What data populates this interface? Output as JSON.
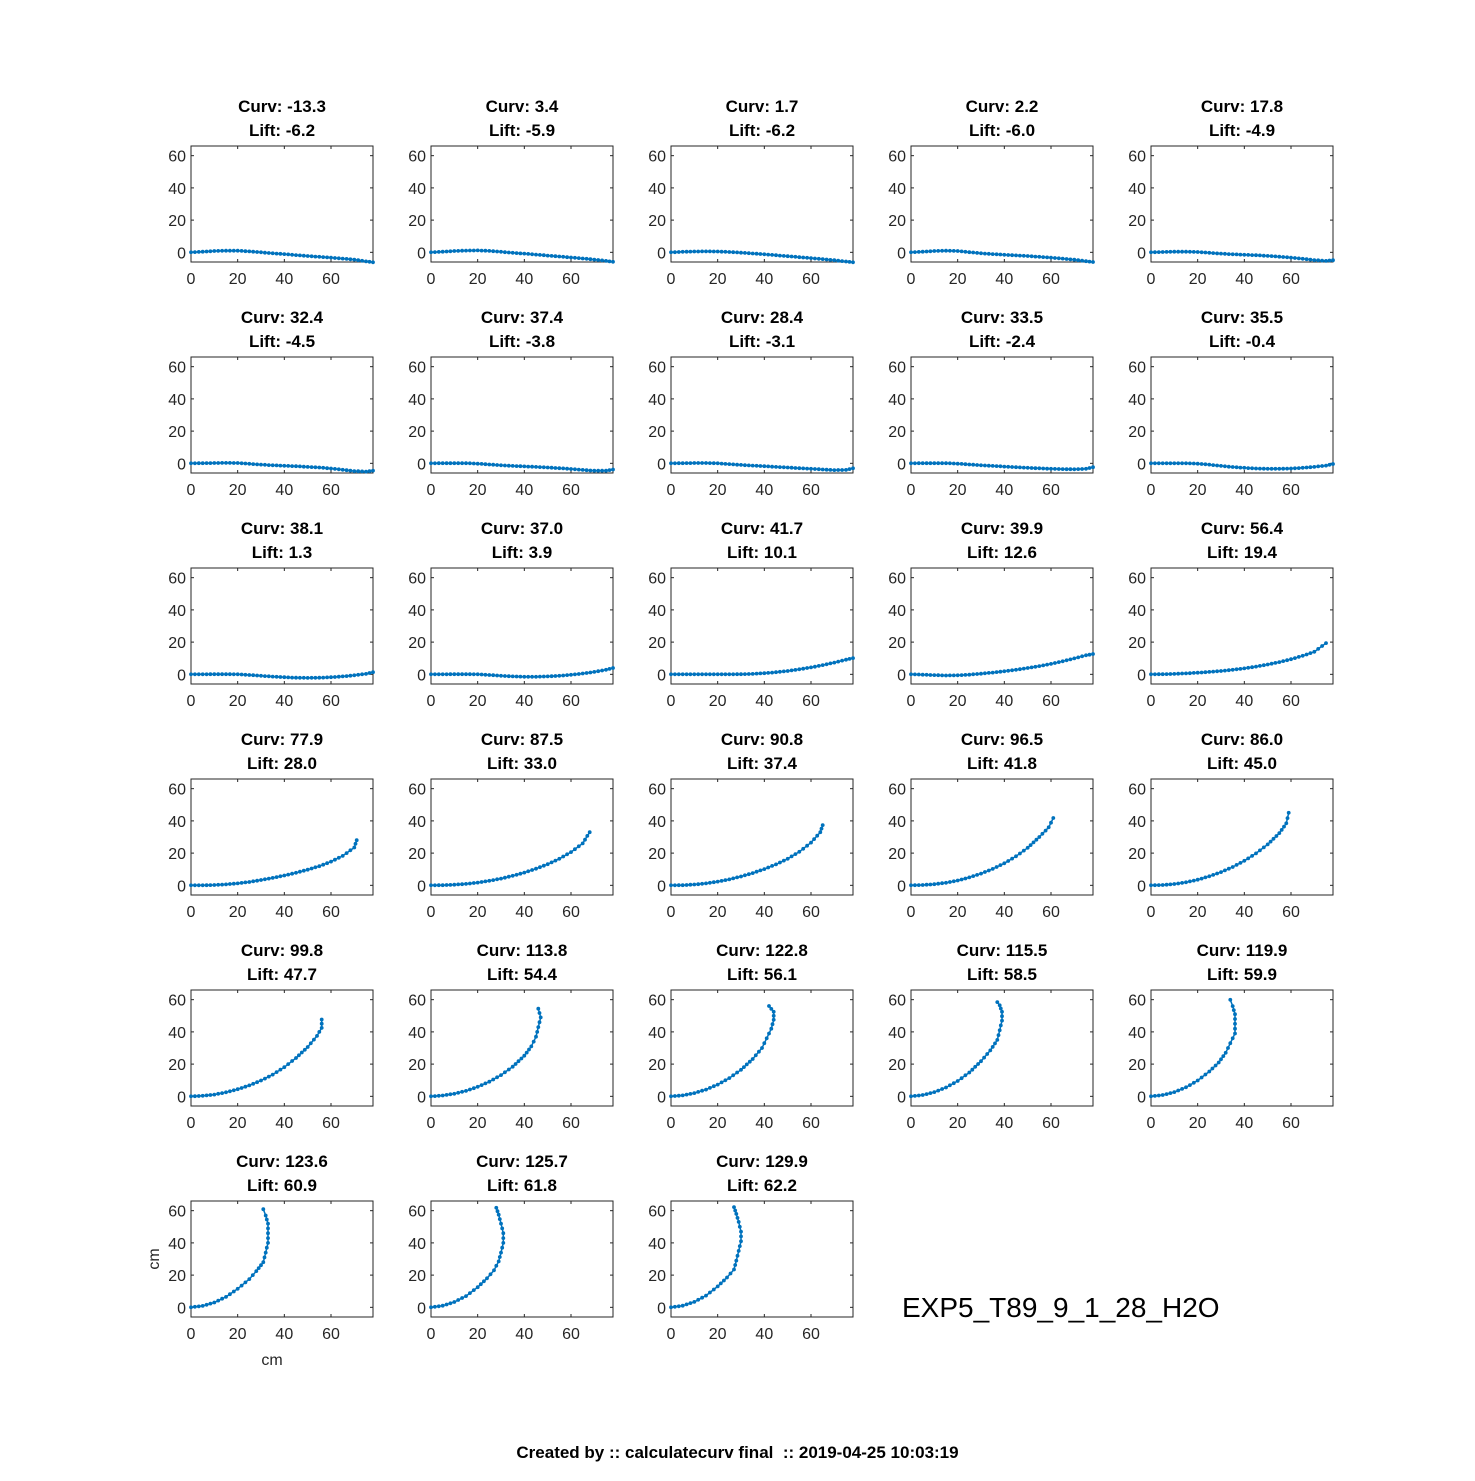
{
  "chart_data": {
    "type": "scatter",
    "layout": "small-multiples grid, 5 columns x 6 rows",
    "xlabel": "cm",
    "ylabel": "cm",
    "xlim": [
      0,
      78
    ],
    "ylim": [
      -6,
      66
    ],
    "xticks": [
      0,
      20,
      40,
      60
    ],
    "yticks": [
      0,
      20,
      40,
      60
    ],
    "series_color": "#0072BD",
    "panels": [
      {
        "curv": "-13.3",
        "lift": "-6.2",
        "x": [
          0,
          5,
          10,
          15,
          20,
          25,
          30,
          35,
          40,
          45,
          50,
          55,
          60,
          65,
          70,
          75,
          78
        ],
        "y": [
          0,
          0.4,
          0.8,
          1.0,
          1.0,
          0.6,
          0,
          -0.6,
          -1.1,
          -1.7,
          -2.3,
          -2.8,
          -3.3,
          -3.9,
          -4.5,
          -5.6,
          -6.2
        ]
      },
      {
        "curv": "3.4",
        "lift": "-5.9",
        "x": [
          0,
          5,
          10,
          15,
          20,
          25,
          30,
          35,
          40,
          45,
          50,
          55,
          60,
          65,
          70,
          75,
          78
        ],
        "y": [
          0,
          0.4,
          0.8,
          1.1,
          1.2,
          0.9,
          0.3,
          -0.3,
          -0.8,
          -1.4,
          -2.0,
          -2.6,
          -3.2,
          -3.8,
          -4.5,
          -5.3,
          -5.9
        ]
      },
      {
        "curv": "1.7",
        "lift": "-6.2",
        "x": [
          0,
          5,
          10,
          15,
          20,
          25,
          30,
          35,
          40,
          45,
          50,
          55,
          60,
          65,
          70,
          75,
          78
        ],
        "y": [
          0,
          0.3,
          0.5,
          0.6,
          0.5,
          0.2,
          -0.2,
          -0.7,
          -1.2,
          -1.8,
          -2.4,
          -3.0,
          -3.6,
          -4.2,
          -4.9,
          -5.7,
          -6.2
        ]
      },
      {
        "curv": "2.2",
        "lift": "-6.0",
        "x": [
          0,
          5,
          10,
          15,
          20,
          25,
          30,
          35,
          40,
          45,
          50,
          55,
          60,
          65,
          70,
          75,
          78
        ],
        "y": [
          0,
          0.4,
          0.8,
          1.0,
          0.8,
          0.1,
          -0.6,
          -1.1,
          -1.5,
          -1.9,
          -2.3,
          -2.8,
          -3.3,
          -3.9,
          -4.6,
          -5.5,
          -6.0
        ]
      },
      {
        "curv": "17.8",
        "lift": "-4.9",
        "x": [
          0,
          5,
          10,
          15,
          20,
          25,
          30,
          35,
          40,
          45,
          50,
          55,
          60,
          65,
          70,
          75,
          78
        ],
        "y": [
          0,
          0.2,
          0.4,
          0.4,
          0.2,
          -0.3,
          -0.8,
          -1.2,
          -1.5,
          -1.8,
          -2.2,
          -2.7,
          -3.3,
          -4.0,
          -4.8,
          -5.3,
          -4.9
        ]
      },
      {
        "curv": "32.4",
        "lift": "-4.5",
        "x": [
          0,
          5,
          10,
          15,
          20,
          25,
          30,
          35,
          40,
          45,
          50,
          55,
          60,
          65,
          70,
          75,
          78
        ],
        "y": [
          0,
          0.1,
          0.2,
          0.3,
          0.2,
          -0.3,
          -0.8,
          -1.2,
          -1.5,
          -1.8,
          -2.2,
          -2.6,
          -3.2,
          -4.0,
          -4.8,
          -5.1,
          -4.5
        ]
      },
      {
        "curv": "37.4",
        "lift": "-3.8",
        "x": [
          0,
          5,
          10,
          15,
          20,
          25,
          30,
          35,
          40,
          45,
          50,
          55,
          60,
          65,
          70,
          75,
          78
        ],
        "y": [
          0,
          0.1,
          0.1,
          0.1,
          -0.2,
          -0.7,
          -1.2,
          -1.6,
          -1.9,
          -2.2,
          -2.6,
          -3.0,
          -3.5,
          -4.1,
          -4.6,
          -4.6,
          -3.8
        ]
      },
      {
        "curv": "28.4",
        "lift": "-3.1",
        "x": [
          0,
          5,
          10,
          15,
          20,
          25,
          30,
          35,
          40,
          45,
          50,
          55,
          60,
          65,
          70,
          75,
          78
        ],
        "y": [
          0,
          0.1,
          0.2,
          0.2,
          0,
          -0.5,
          -1.0,
          -1.4,
          -1.8,
          -2.2,
          -2.6,
          -3.0,
          -3.4,
          -3.8,
          -4.2,
          -4.1,
          -3.1
        ]
      },
      {
        "curv": "33.5",
        "lift": "-2.4",
        "x": [
          0,
          5,
          10,
          15,
          20,
          25,
          30,
          35,
          40,
          45,
          50,
          55,
          60,
          65,
          70,
          75,
          78
        ],
        "y": [
          0,
          0.1,
          0.1,
          0.1,
          -0.2,
          -0.7,
          -1.2,
          -1.6,
          -2.0,
          -2.4,
          -2.8,
          -3.1,
          -3.4,
          -3.6,
          -3.7,
          -3.4,
          -2.4
        ]
      },
      {
        "curv": "35.5",
        "lift": "-0.4",
        "x": [
          0,
          5,
          10,
          15,
          20,
          25,
          30,
          35,
          40,
          45,
          50,
          55,
          60,
          65,
          70,
          75,
          78
        ],
        "y": [
          0,
          0,
          0,
          0,
          -0.2,
          -0.8,
          -1.6,
          -2.3,
          -2.8,
          -3.2,
          -3.4,
          -3.4,
          -3.2,
          -2.8,
          -2.2,
          -1.4,
          -0.4
        ]
      },
      {
        "curv": "38.1",
        "lift": "1.3",
        "x": [
          0,
          5,
          10,
          15,
          20,
          25,
          30,
          35,
          40,
          45,
          50,
          55,
          60,
          65,
          70,
          75,
          78
        ],
        "y": [
          0,
          0,
          0.1,
          0.1,
          0,
          -0.4,
          -0.9,
          -1.4,
          -1.8,
          -2.1,
          -2.2,
          -2.1,
          -1.8,
          -1.3,
          -0.6,
          0.3,
          1.3
        ]
      },
      {
        "curv": "37.0",
        "lift": "3.9",
        "x": [
          0,
          5,
          10,
          15,
          20,
          25,
          30,
          35,
          40,
          45,
          50,
          55,
          60,
          65,
          70,
          75,
          78
        ],
        "y": [
          0,
          0,
          0.1,
          0.1,
          0,
          -0.4,
          -0.9,
          -1.3,
          -1.5,
          -1.5,
          -1.3,
          -0.9,
          -0.3,
          0.5,
          1.5,
          2.8,
          3.9
        ]
      },
      {
        "curv": "41.7",
        "lift": "10.1",
        "x": [
          0,
          5,
          10,
          15,
          20,
          25,
          30,
          35,
          40,
          45,
          50,
          55,
          60,
          65,
          70,
          75,
          78
        ],
        "y": [
          0,
          0,
          0,
          0,
          0,
          0,
          0.1,
          0.3,
          0.7,
          1.3,
          2.1,
          3.1,
          4.3,
          5.7,
          7.3,
          9.1,
          10.1
        ]
      },
      {
        "curv": "39.9",
        "lift": "12.6",
        "x": [
          0,
          5,
          10,
          15,
          20,
          25,
          30,
          35,
          40,
          45,
          50,
          55,
          60,
          65,
          70,
          75,
          78
        ],
        "y": [
          0,
          -0.2,
          -0.5,
          -0.7,
          -0.6,
          -0.2,
          0.4,
          1.1,
          1.9,
          2.8,
          3.9,
          5.1,
          6.5,
          8.1,
          9.9,
          11.8,
          12.6
        ]
      },
      {
        "curv": "56.4",
        "lift": "19.4",
        "x": [
          0,
          5,
          10,
          15,
          20,
          25,
          30,
          35,
          40,
          45,
          50,
          55,
          60,
          65,
          70,
          75
        ],
        "y": [
          0,
          0.1,
          0.3,
          0.6,
          1.0,
          1.5,
          2.1,
          2.8,
          3.7,
          4.8,
          6.1,
          7.6,
          9.4,
          11.5,
          14.0,
          19.4
        ]
      },
      {
        "curv": "77.9",
        "lift": "28.0",
        "x": [
          0,
          5,
          10,
          15,
          20,
          25,
          30,
          35,
          40,
          45,
          50,
          55,
          60,
          65,
          70,
          71
        ],
        "y": [
          0,
          0,
          0.2,
          0.6,
          1.2,
          2.1,
          3.3,
          4.6,
          6.1,
          7.8,
          9.7,
          11.9,
          14.7,
          18.3,
          23.5,
          28.0
        ]
      },
      {
        "curv": "87.5",
        "lift": "33.0",
        "x": [
          0,
          5,
          10,
          15,
          20,
          25,
          30,
          35,
          40,
          45,
          50,
          55,
          60,
          65,
          68
        ],
        "y": [
          0,
          0.1,
          0.4,
          0.9,
          1.7,
          2.8,
          4.2,
          5.9,
          7.9,
          10.3,
          13.1,
          16.5,
          20.6,
          26.0,
          33.0
        ]
      },
      {
        "curv": "90.8",
        "lift": "37.4",
        "x": [
          0,
          5,
          10,
          15,
          20,
          25,
          30,
          35,
          40,
          45,
          50,
          55,
          60,
          64,
          65
        ],
        "y": [
          0,
          0.1,
          0.5,
          1.2,
          2.3,
          3.7,
          5.5,
          7.6,
          10.1,
          13.0,
          16.5,
          20.8,
          26.5,
          33.0,
          37.4
        ]
      },
      {
        "curv": "96.5",
        "lift": "41.8",
        "x": [
          0,
          5,
          10,
          15,
          20,
          25,
          30,
          35,
          40,
          45,
          50,
          55,
          59,
          61
        ],
        "y": [
          0,
          0.2,
          0.7,
          1.6,
          3.0,
          4.9,
          7.3,
          10.2,
          13.7,
          18.0,
          23.3,
          30.0,
          36.0,
          41.8
        ]
      },
      {
        "curv": "86.0",
        "lift": "45.0",
        "x": [
          0,
          5,
          10,
          15,
          20,
          25,
          30,
          35,
          40,
          45,
          50,
          55,
          58,
          59
        ],
        "y": [
          0,
          0.2,
          0.8,
          1.9,
          3.5,
          5.6,
          8.2,
          11.4,
          15.2,
          19.8,
          25.4,
          32.4,
          38.5,
          45.0
        ]
      },
      {
        "curv": "99.8",
        "lift": "47.7",
        "x": [
          0,
          5,
          10,
          15,
          20,
          25,
          30,
          35,
          40,
          45,
          50,
          54,
          56,
          56
        ],
        "y": [
          0,
          0.3,
          1.1,
          2.5,
          4.4,
          6.8,
          9.8,
          13.5,
          18.1,
          23.8,
          30.6,
          37.5,
          42.5,
          47.7
        ]
      },
      {
        "curv": "113.8",
        "lift": "54.4",
        "x": [
          0,
          5,
          10,
          15,
          20,
          25,
          30,
          35,
          40,
          43,
          45,
          46,
          47,
          46
        ],
        "y": [
          0,
          0.5,
          1.6,
          3.4,
          5.9,
          9.1,
          13.2,
          18.4,
          25.2,
          31.0,
          37.0,
          43.0,
          49.0,
          54.4
        ]
      },
      {
        "curv": "122.8",
        "lift": "56.1",
        "x": [
          0,
          5,
          10,
          15,
          20,
          25,
          30,
          35,
          39,
          41,
          43,
          44,
          44,
          42
        ],
        "y": [
          0,
          0.6,
          2.0,
          4.2,
          7.3,
          11.3,
          16.5,
          23.2,
          30.0,
          36.0,
          42.0,
          47.5,
          52.5,
          56.1
        ]
      },
      {
        "curv": "115.5",
        "lift": "58.5",
        "x": [
          0,
          5,
          10,
          15,
          20,
          25,
          30,
          34,
          37,
          38,
          39,
          39,
          38,
          37
        ],
        "y": [
          0,
          0.8,
          2.6,
          5.5,
          9.5,
          14.8,
          21.8,
          28.5,
          35.0,
          41.0,
          47.0,
          52.5,
          56.5,
          58.5
        ]
      },
      {
        "curv": "119.9",
        "lift": "59.9",
        "x": [
          0,
          5,
          10,
          15,
          20,
          25,
          29,
          32,
          34,
          36,
          36,
          36,
          35,
          34
        ],
        "y": [
          0,
          0.8,
          2.6,
          5.6,
          9.8,
          15.4,
          21.0,
          27.0,
          33.0,
          39.0,
          45.0,
          51.0,
          56.0,
          59.9
        ]
      },
      {
        "curv": "123.6",
        "lift": "60.9",
        "x": [
          0,
          5,
          10,
          15,
          20,
          25,
          28,
          31,
          32,
          33,
          33,
          33,
          32,
          31
        ],
        "y": [
          0,
          0.9,
          3.0,
          6.5,
          11.5,
          17.5,
          22.5,
          28.0,
          34.0,
          40.0,
          46.0,
          52.0,
          57.0,
          60.9
        ]
      },
      {
        "curv": "125.7",
        "lift": "61.8",
        "x": [
          0,
          5,
          10,
          15,
          20,
          24,
          27,
          29,
          30,
          31,
          31,
          30,
          29,
          28
        ],
        "y": [
          0,
          1.0,
          3.3,
          7.0,
          12.5,
          18.0,
          23.0,
          28.5,
          34.0,
          40.0,
          46.0,
          52.0,
          57.5,
          61.8
        ]
      },
      {
        "curv": "129.9",
        "lift": "62.2",
        "x": [
          0,
          5,
          10,
          15,
          20,
          24,
          27,
          28,
          29,
          30,
          30,
          29,
          28,
          27
        ],
        "y": [
          0,
          1.0,
          3.4,
          7.3,
          13.0,
          18.5,
          23.5,
          29.0,
          35.0,
          41.0,
          47.0,
          53.0,
          58.0,
          62.2
        ]
      }
    ]
  },
  "experiment_label": "EXP5_T89_9_1_28_H2O",
  "footer": "Created by :: calculatecurv final  :: 2019-04-25 10:03:19"
}
